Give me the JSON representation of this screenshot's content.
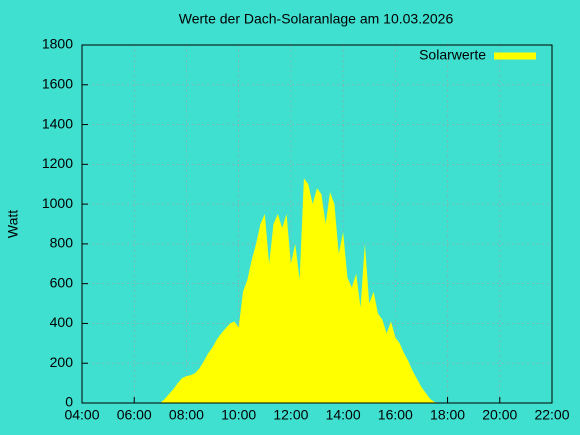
{
  "chart_data": {
    "type": "area",
    "title": "Werte der Dach-Solaranlage am 10.03.2026",
    "ylabel": "Watt",
    "x": [
      "07:00",
      "07:10",
      "07:20",
      "07:30",
      "07:40",
      "07:50",
      "08:00",
      "08:10",
      "08:20",
      "08:30",
      "08:40",
      "08:50",
      "09:00",
      "09:10",
      "09:20",
      "09:30",
      "09:40",
      "09:50",
      "10:00",
      "10:10",
      "10:20",
      "10:30",
      "10:40",
      "10:50",
      "11:00",
      "11:10",
      "11:20",
      "11:30",
      "11:40",
      "11:50",
      "12:00",
      "12:10",
      "12:20",
      "12:30",
      "12:40",
      "12:50",
      "13:00",
      "13:10",
      "13:20",
      "13:30",
      "13:40",
      "13:50",
      "14:00",
      "14:10",
      "14:20",
      "14:30",
      "14:40",
      "14:50",
      "15:00",
      "15:10",
      "15:20",
      "15:30",
      "15:40",
      "15:50",
      "16:00",
      "16:10",
      "16:20",
      "16:30",
      "16:40",
      "16:50",
      "17:00",
      "17:10",
      "17:20",
      "17:30",
      "17:40"
    ],
    "series": [
      {
        "name": "Solarwerte",
        "color": "#ffff00",
        "values": [
          0,
          20,
          45,
          70,
          100,
          125,
          135,
          140,
          150,
          175,
          210,
          250,
          280,
          320,
          350,
          375,
          400,
          410,
          380,
          560,
          620,
          720,
          800,
          900,
          950,
          700,
          900,
          950,
          880,
          950,
          700,
          800,
          620,
          1130,
          1100,
          1000,
          1080,
          1050,
          900,
          1060,
          1000,
          750,
          860,
          630,
          580,
          650,
          480,
          800,
          500,
          560,
          450,
          420,
          350,
          410,
          330,
          300,
          250,
          210,
          160,
          120,
          80,
          50,
          20,
          5,
          0
        ]
      }
    ],
    "xlim": [
      "04:00",
      "22:00"
    ],
    "xticks": [
      "04:00",
      "06:00",
      "08:00",
      "10:00",
      "12:00",
      "14:00",
      "16:00",
      "18:00",
      "20:00",
      "22:00"
    ],
    "ylim": [
      0,
      1800
    ],
    "yticks": [
      0,
      200,
      400,
      600,
      800,
      1000,
      1200,
      1400,
      1600,
      1800
    ],
    "grid": true,
    "legend": "top-right"
  }
}
